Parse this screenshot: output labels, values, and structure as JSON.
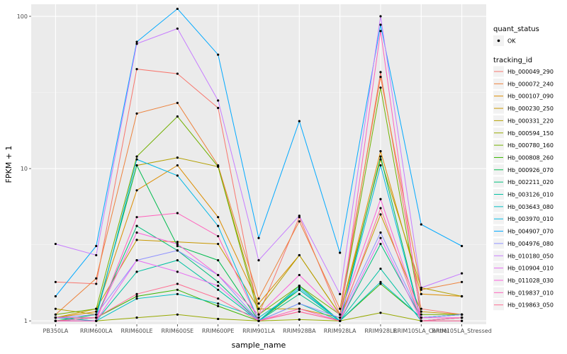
{
  "chart_data": {
    "type": "line",
    "title": "",
    "xlabel": "sample_name",
    "ylabel": "FPKM + 1",
    "y_scale": "log10",
    "ylim": [
      0.95,
      120
    ],
    "y_ticks": [
      {
        "value": 1,
        "label": "1"
      },
      {
        "value": 10,
        "label": "10"
      },
      {
        "value": 100,
        "label": "100"
      }
    ],
    "grid": true,
    "legend_placement": "right",
    "categories": [
      "PB350LA",
      "RRIM600LA",
      "RRIM600LE",
      "RRIM600SE",
      "RRIM600PE",
      "RRIM901LA",
      "RRIM928BA",
      "RRIM928LA",
      "RRIM928LE",
      "RRIM105LA_Control",
      "RRIM105LA_Stressed"
    ],
    "shape_legend": {
      "title": "quant_status",
      "entries": [
        "OK"
      ]
    },
    "color_legend_title": "tracking_id",
    "series": [
      {
        "name": "Hb_000049_290",
        "color": "#F8766D",
        "values": [
          1.8,
          1.75,
          45,
          42,
          25,
          1.1,
          4.8,
          1.1,
          43,
          1.2,
          1.1
        ]
      },
      {
        "name": "Hb_000072_240",
        "color": "#EC823C",
        "values": [
          1.1,
          1.9,
          23,
          27,
          10.5,
          1.4,
          4.5,
          1.2,
          40,
          1.6,
          1.8
        ]
      },
      {
        "name": "Hb_000107_090",
        "color": "#DC8D00",
        "values": [
          1.05,
          1.15,
          7.2,
          10.5,
          4.8,
          1.3,
          2.7,
          1.1,
          13,
          1.5,
          1.45
        ]
      },
      {
        "name": "Hb_000230_250",
        "color": "#C99800",
        "values": [
          1.05,
          1.2,
          3.4,
          3.3,
          3.2,
          1.2,
          1.2,
          1.05,
          5.0,
          1.15,
          1.1
        ]
      },
      {
        "name": "Hb_000331_220",
        "color": "#B3A000",
        "values": [
          1.2,
          1.1,
          10.5,
          11.8,
          10.3,
          1.2,
          2.7,
          1.1,
          11.5,
          1.65,
          1.45
        ]
      },
      {
        "name": "Hb_000594_150",
        "color": "#97A900",
        "values": [
          1.0,
          1.0,
          1.05,
          1.1,
          1.03,
          1.0,
          1.02,
          1.0,
          1.13,
          1.0,
          1.0
        ]
      },
      {
        "name": "Hb_000780_160",
        "color": "#72B000",
        "values": [
          1.1,
          1.2,
          12.0,
          22.0,
          10.3,
          1.1,
          1.7,
          1.1,
          34,
          1.1,
          1.1
        ]
      },
      {
        "name": "Hb_000808_260",
        "color": "#39B600",
        "values": [
          1.05,
          1.05,
          1.45,
          1.6,
          1.25,
          1.0,
          1.6,
          1.0,
          1.75,
          1.05,
          1.1
        ]
      },
      {
        "name": "Hb_000926_070",
        "color": "#00BB4E",
        "values": [
          1.0,
          1.1,
          10.5,
          3.1,
          2.5,
          1.0,
          1.7,
          1.0,
          12.0,
          1.0,
          1.05
        ]
      },
      {
        "name": "Hb_002211_020",
        "color": "#00BF7D",
        "values": [
          1.0,
          1.05,
          4.2,
          2.9,
          1.8,
          1.0,
          1.5,
          1.0,
          3.2,
          1.05,
          1.1
        ]
      },
      {
        "name": "Hb_003126_010",
        "color": "#00C1A3",
        "values": [
          1.0,
          1.0,
          2.1,
          2.5,
          1.6,
          1.0,
          1.3,
          1.0,
          2.2,
          1.0,
          1.05
        ]
      },
      {
        "name": "Hb_003643_080",
        "color": "#00BFC4",
        "values": [
          1.05,
          1.0,
          1.4,
          1.5,
          1.3,
          1.05,
          1.6,
          1.0,
          1.8,
          1.05,
          1.1
        ]
      },
      {
        "name": "Hb_003970_010",
        "color": "#00B8E5",
        "values": [
          1.0,
          1.05,
          11.5,
          9.0,
          4.2,
          1.0,
          1.65,
          1.0,
          10.5,
          1.0,
          1.05
        ]
      },
      {
        "name": "Hb_004907_070",
        "color": "#00A9FF",
        "values": [
          1.45,
          3.1,
          68,
          112,
          56,
          3.5,
          20.5,
          2.8,
          88,
          4.3,
          3.1
        ]
      },
      {
        "name": "Hb_004976_080",
        "color": "#8F91FF",
        "values": [
          1.05,
          1.1,
          2.5,
          2.9,
          2.0,
          1.0,
          1.3,
          1.05,
          3.8,
          1.05,
          1.1
        ]
      },
      {
        "name": "Hb_010180_050",
        "color": "#C77CFF",
        "values": [
          3.2,
          2.7,
          66,
          83,
          28,
          2.5,
          4.9,
          1.5,
          100,
          1.65,
          2.05
        ]
      },
      {
        "name": "Hb_010904_010",
        "color": "#E76BF3",
        "values": [
          1.0,
          1.0,
          2.5,
          2.1,
          1.7,
          1.0,
          1.15,
          1.0,
          3.5,
          1.0,
          1.05
        ]
      },
      {
        "name": "Hb_011028_030",
        "color": "#FA62DB",
        "values": [
          1.05,
          1.05,
          3.8,
          3.2,
          2.0,
          1.1,
          2.0,
          1.1,
          6.3,
          1.05,
          1.05
        ]
      },
      {
        "name": "Hb_019837_010",
        "color": "#FF62BC",
        "values": [
          1.0,
          1.0,
          4.8,
          5.1,
          3.6,
          1.0,
          1.2,
          1.0,
          80,
          1.0,
          1.0
        ]
      },
      {
        "name": "Hb_019863_050",
        "color": "#FF6C91",
        "values": [
          1.0,
          1.05,
          1.5,
          1.75,
          1.4,
          1.0,
          1.15,
          1.0,
          5.5,
          1.0,
          1.05
        ]
      }
    ]
  }
}
